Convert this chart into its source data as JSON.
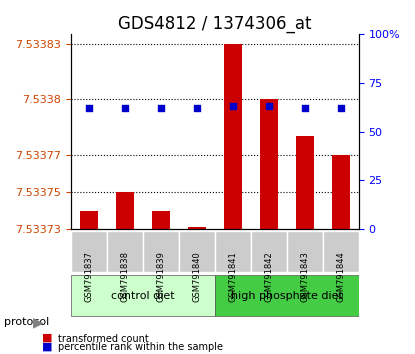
{
  "title": "GDS4812 / 1374306_at",
  "samples": [
    "GSM791837",
    "GSM791838",
    "GSM791839",
    "GSM791840",
    "GSM791841",
    "GSM791842",
    "GSM791843",
    "GSM791844"
  ],
  "transformed_counts": [
    7.53374,
    7.53375,
    7.53374,
    7.533731,
    7.53383,
    7.5338,
    7.53378,
    7.53377
  ],
  "percentile_ranks": [
    62,
    62,
    62,
    62,
    62,
    62,
    62,
    62
  ],
  "ylim_left": [
    7.53373,
    7.533835
  ],
  "ylim_right": [
    0,
    100
  ],
  "yticks_left": [
    7.53373,
    7.53375,
    7.53377,
    7.5338,
    7.53383
  ],
  "yticks_right": [
    0,
    25,
    50,
    75,
    100
  ],
  "ytick_labels_left": [
    "7.53373",
    "7.53375",
    "7.53377",
    "7.5338",
    "7.53383"
  ],
  "ytick_labels_right": [
    "0",
    "25",
    "50",
    "75",
    "100%"
  ],
  "groups": [
    {
      "label": "control diet",
      "indices": [
        0,
        1,
        2,
        3
      ],
      "color": "#ccffcc"
    },
    {
      "label": "high phosphate diet",
      "indices": [
        4,
        5,
        6,
        7
      ],
      "color": "#44cc44"
    }
  ],
  "bar_color": "#cc0000",
  "dot_color": "#0000cc",
  "grid_color": "#000000",
  "bg_color": "#ffffff",
  "plot_bg": "#ffffff",
  "label_area_color": "#cccccc",
  "protocol_label": "protocol",
  "legend_bar_label": "transformed count",
  "legend_dot_label": "percentile rank within the sample",
  "title_fontsize": 12,
  "tick_fontsize": 8,
  "label_fontsize": 9
}
